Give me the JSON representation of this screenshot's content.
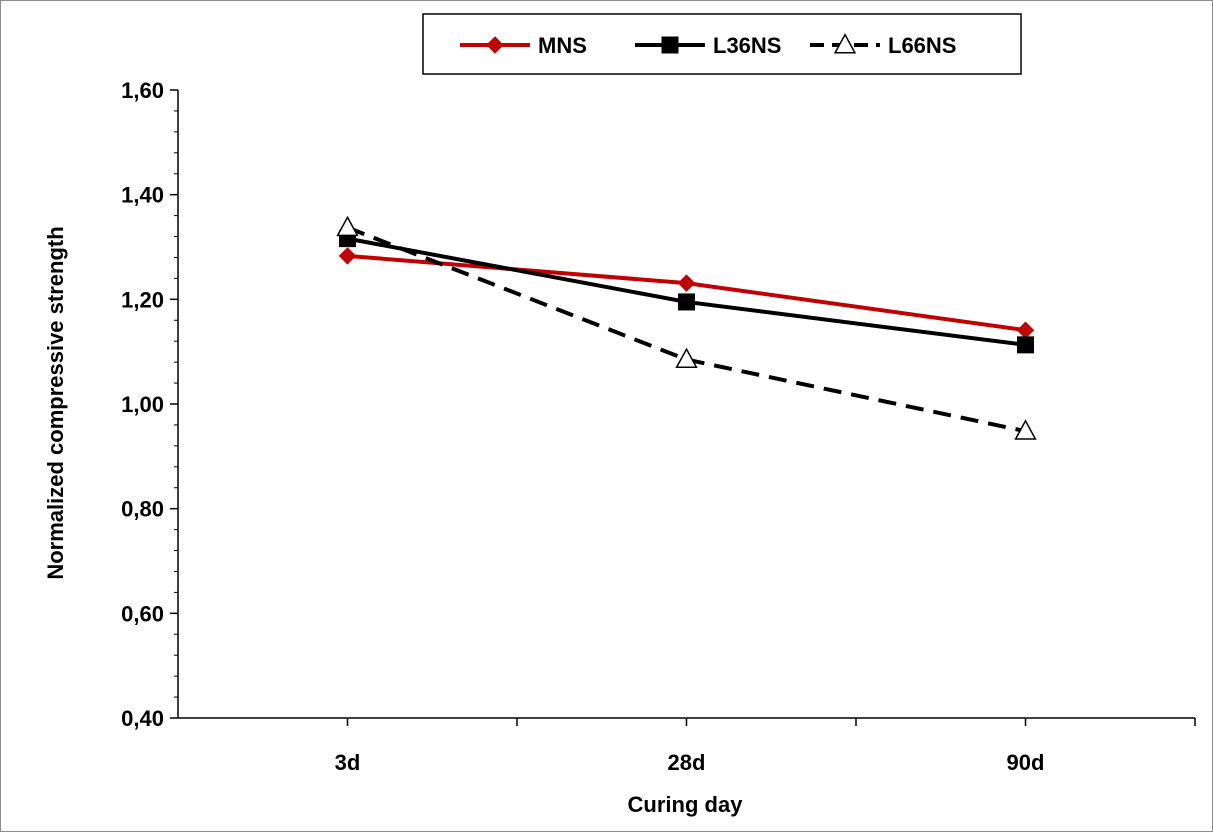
{
  "chart_data": {
    "type": "line",
    "title": "",
    "xlabel": "Curing day",
    "ylabel": "Normalized compressive strength",
    "categories": [
      "3d",
      "28d",
      "90d"
    ],
    "ylim": [
      0.4,
      1.6
    ],
    "yticks": [
      0.4,
      0.6,
      0.8,
      1.0,
      1.2,
      1.4,
      1.6
    ],
    "ytick_labels": [
      "0,40",
      "0,60",
      "0,80",
      "1,00",
      "1,20",
      "1,40",
      "1,60"
    ],
    "grid": false,
    "legend": "top-center",
    "series": [
      {
        "name": "MNS",
        "values": [
          1.283,
          1.231,
          1.141
        ],
        "color": "#c00000",
        "marker": "diamond",
        "line": "solid"
      },
      {
        "name": "L36NS",
        "values": [
          1.316,
          1.195,
          1.113
        ],
        "color": "#000000",
        "marker": "square",
        "line": "solid"
      },
      {
        "name": "L66NS",
        "values": [
          1.337,
          1.085,
          0.948
        ],
        "color": "#000000",
        "marker": "triangle",
        "line": "dashed"
      }
    ]
  }
}
